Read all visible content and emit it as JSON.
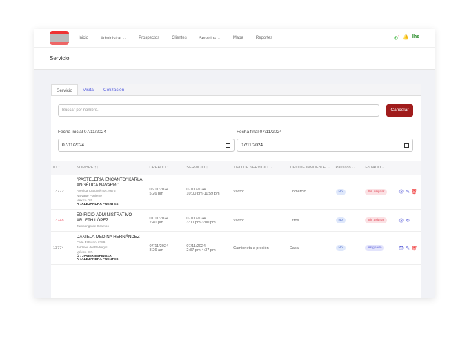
{
  "nav": {
    "items": [
      "Inicio",
      "Administrar ⌄",
      "Prospectos",
      "Clientes",
      "Servicios ⌄",
      "Mapa",
      "Reportes"
    ],
    "badge": "2",
    "brand": "Ihs"
  },
  "page_title": "Servicio",
  "tabs": [
    "Servicio",
    "Visita",
    "Cotización"
  ],
  "search": {
    "placeholder": "Buscar por nombre."
  },
  "cancel_label": "Cancelar",
  "fecha_inicial": {
    "label": "Fecha inicial 07/11/2024",
    "value": "07/11/2024"
  },
  "fecha_final": {
    "label": "Fecha final 07/11/2024",
    "value": "07/11/2024"
  },
  "columns": [
    "ID ↑↓",
    "NOMBRE ↑↓",
    "CREADO ↑↓",
    "SERVICIO ↓",
    "TIPO DE SERVICIO ⌄",
    "TIPO DE INMUEBLE ⌄",
    "Pausado ⌄",
    "ESTADO ⌄"
  ],
  "rows": [
    {
      "id": "13772",
      "name": "\"PASTELERÍA ENCANTO\" KARLA ANGÉLICA NAVARRO",
      "addr": [
        "Avenida Cuauhtémoc, #675",
        "Narvarte Poniente",
        "México D.F."
      ],
      "techs": [
        "A : ALEJANDRA FUENTES"
      ],
      "created": [
        "06/11/2024",
        "5:26 pm"
      ],
      "service": [
        "07/11/2024",
        "10:00 pm-11:59 pm"
      ],
      "tipo": "Vactor",
      "inmueble": "Comercio",
      "pausado": "No",
      "estado": "Sin asignar",
      "estado_type": "sin"
    },
    {
      "id": "13748",
      "name": "EDIFICIO ADMINISTRATIVO ARLETH LÓPEZ",
      "addr": [
        "Zumpango de Ocampo"
      ],
      "techs": [],
      "created": [
        "01/11/2024",
        "2:40 pm"
      ],
      "service": [
        "07/11/2024",
        "3:00 pm-3:00 pm"
      ],
      "tipo": "Vactor",
      "inmueble": "Otros",
      "pausado": "No",
      "estado": "Sin asignar",
      "estado_type": "sin"
    },
    {
      "id": "13774",
      "name": "DANIELA MEDINA HERNÁNDEZ",
      "addr": [
        "Calle El Risco, #289",
        "Jardines del Pedregal",
        "México D.F."
      ],
      "techs": [
        "Ó : JAVIER ESPINOZA",
        "A : ALEJANDRA FUENTES"
      ],
      "created": [
        "07/11/2024",
        "8:26 am"
      ],
      "service": [
        "07/11/2024",
        "2:37 pm-4:37 pm"
      ],
      "tipo": "Camioneta a presión",
      "inmueble": "Casa",
      "pausado": "No",
      "estado": "Asignado",
      "estado_type": "asg"
    }
  ]
}
